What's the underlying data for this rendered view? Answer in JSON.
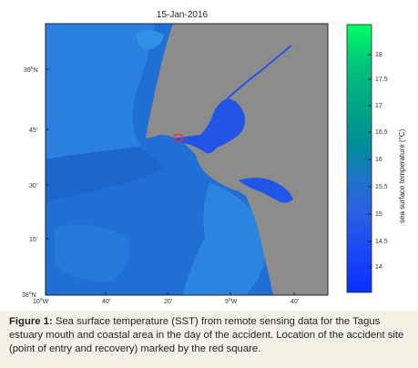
{
  "map": {
    "date_title": "15-Jan-2016",
    "lat_ticks": [
      {
        "label": "39",
        "sup": "o",
        "suffix": "N"
      },
      {
        "label": "45'"
      },
      {
        "label": "30'"
      },
      {
        "label": "15'"
      },
      {
        "label": "38",
        "sup": "o",
        "suffix": "N"
      }
    ],
    "lon_ticks": [
      {
        "label": "10",
        "sup": "o",
        "suffix": "W"
      },
      {
        "label": "40'"
      },
      {
        "label": "20'"
      },
      {
        "label": "9",
        "sup": "o",
        "suffix": "W"
      },
      {
        "label": "40'"
      }
    ],
    "land_color": "#8c8c8c",
    "accident_marker_color": "#ff2a2a"
  },
  "colorbar": {
    "label": "sea surface temperature (°C)",
    "ticks": [
      "18",
      "17.5",
      "17",
      "16.5",
      "16",
      "15.5",
      "15",
      "14.5",
      "14"
    ],
    "colors": [
      "#00ff66",
      "#00c47a",
      "#00a585",
      "#008c99",
      "#1f73c9",
      "#2a60e0",
      "#1a4df0",
      "#0f3df5",
      "#0a2eff"
    ]
  },
  "caption": {
    "label": "Figure 1:",
    "text": " Sea surface temperature (SST) from remote sensing data for the Tagus estuary mouth and coastal area in the day of the accident. Location of the accident site (point of entry and recovery) marked by the red square."
  }
}
